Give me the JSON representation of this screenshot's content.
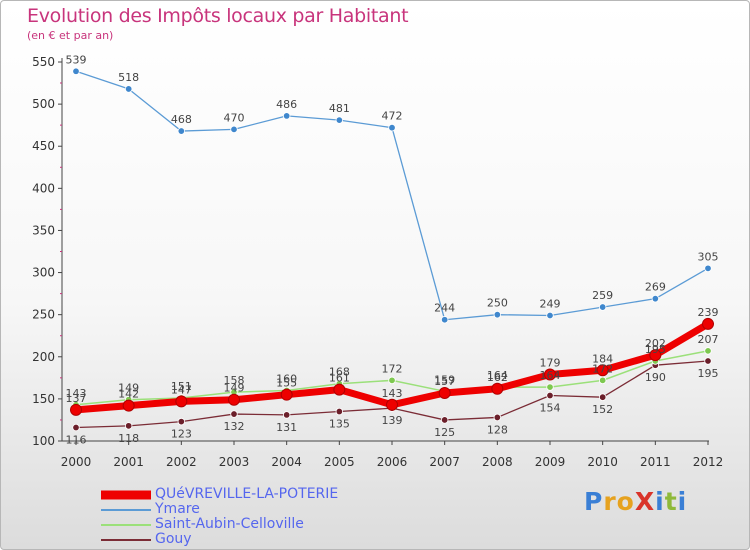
{
  "header": {
    "title": "Evolution des Impôts locaux par Habitant",
    "subtitle": "(en € et par an)"
  },
  "logo": {
    "text": "ProXiti",
    "letter_colors": [
      "#3a7fd5",
      "#e6a21f",
      "#e6a21f",
      "#d9342a",
      "#3a7fd5",
      "#8fb93a",
      "#3a7fd5"
    ]
  },
  "chart_data": {
    "type": "line",
    "title": "Evolution des Impôts locaux par Habitant",
    "subtitle": "(en € et par an)",
    "xlabel": "",
    "ylabel": "",
    "x": [
      2000,
      2001,
      2002,
      2003,
      2004,
      2005,
      2006,
      2007,
      2008,
      2009,
      2010,
      2011,
      2012
    ],
    "ylim": [
      100,
      550
    ],
    "yticks": [
      100,
      150,
      200,
      250,
      300,
      350,
      400,
      450,
      500,
      550
    ],
    "grid": false,
    "legend": "bottom-left",
    "series": [
      {
        "name": "QUéVREVILLE-LA-POTERIE",
        "color": "#ee0000",
        "point_color": "#ee0000",
        "values": [
          137,
          142,
          147,
          149,
          155,
          161,
          143,
          157,
          162,
          179,
          184,
          202,
          239
        ]
      },
      {
        "name": "Ymare",
        "color": "#5b9bd5",
        "point_color": "#3f87cd",
        "values": [
          539,
          518,
          468,
          470,
          486,
          481,
          472,
          244,
          250,
          249,
          259,
          269,
          305
        ]
      },
      {
        "name": "Saint-Aubin-Celloville",
        "color": "#9be07a",
        "point_color": "#7ec850",
        "values": [
          143,
          149,
          151,
          158,
          160,
          168,
          172,
          159,
          164,
          164,
          172,
          195,
          207
        ]
      },
      {
        "name": "Gouy",
        "color": "#7b2c36",
        "point_color": "#6b1f2a",
        "values": [
          116,
          118,
          123,
          132,
          131,
          135,
          139,
          125,
          128,
          154,
          152,
          190,
          195
        ]
      }
    ]
  }
}
